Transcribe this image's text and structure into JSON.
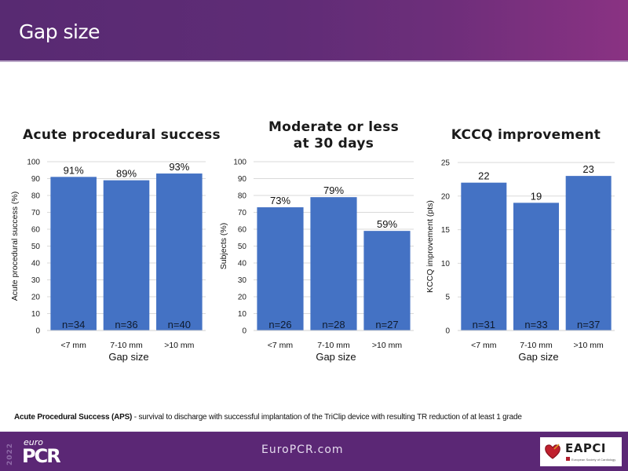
{
  "header": {
    "title": "Gap size"
  },
  "colors": {
    "bar": "#4472c4",
    "header_start": "#582a72",
    "header_end": "#8a3283",
    "footer": "#5b2775",
    "grid": "#d9d9d9"
  },
  "chart_data": [
    {
      "type": "bar",
      "title": "Acute procedural success",
      "xlabel": "Gap size",
      "ylabel": "Acute procedural success (%)",
      "categories": [
        "<7 mm",
        "7-10 mm",
        ">10 mm"
      ],
      "values": [
        91,
        89,
        93
      ],
      "data_labels": [
        "91%",
        "89%",
        "93%"
      ],
      "n_labels": [
        "n=34",
        "n=36",
        "n=40"
      ],
      "ylim": [
        0,
        100
      ],
      "yticks": [
        0,
        10,
        20,
        30,
        40,
        50,
        60,
        70,
        80,
        90,
        100
      ],
      "grid": true,
      "legend": "none"
    },
    {
      "type": "bar",
      "title": "Moderate or less at 30 days",
      "title_lines": [
        "Moderate or less",
        "at 30 days"
      ],
      "xlabel": "Gap size",
      "ylabel": "Subjects (%)",
      "categories": [
        "<7 mm",
        "7-10 mm",
        ">10 mm"
      ],
      "values": [
        73,
        79,
        59
      ],
      "data_labels": [
        "73%",
        "79%",
        "59%"
      ],
      "n_labels": [
        "n=26",
        "n=28",
        "n=27"
      ],
      "ylim": [
        0,
        100
      ],
      "yticks": [
        0,
        10,
        20,
        30,
        40,
        50,
        60,
        70,
        80,
        90,
        100
      ],
      "grid": true,
      "legend": "none"
    },
    {
      "type": "bar",
      "title": "KCCQ improvement",
      "xlabel": "Gap size",
      "ylabel": "KCCQ improvement (pts)",
      "categories": [
        "<7 mm",
        "7-10 mm",
        ">10 mm"
      ],
      "values": [
        22,
        19,
        23
      ],
      "data_labels": [
        "22",
        "19",
        "23"
      ],
      "n_labels": [
        "n=31",
        "n=33",
        "n=37"
      ],
      "ylim": [
        0,
        25
      ],
      "yticks": [
        0,
        5,
        10,
        15,
        20,
        25
      ],
      "grid": true,
      "legend": "none"
    }
  ],
  "footnote": {
    "term": "Acute Procedural  Success (APS)",
    "definition": " - survival to discharge with successful implantation of the TriClip device with resulting TR reduction of at least 1 grade"
  },
  "footer": {
    "logo_year": "2022",
    "logo_euro": "euro",
    "logo_pcr": "PCR",
    "site": "EuroPCR.com",
    "partner_name": "EAPCI",
    "partner_sub": "European Society of Cardiology"
  }
}
